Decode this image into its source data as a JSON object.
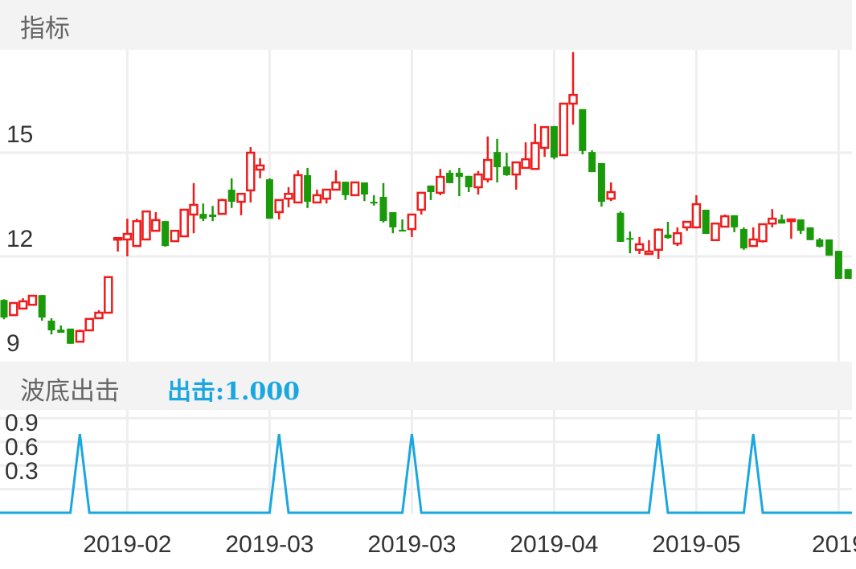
{
  "header": {
    "title": "指标"
  },
  "indicator_header": {
    "title": "波底出击",
    "value_label": "出击:1.000"
  },
  "colors": {
    "up": "#ee1c1c",
    "down": "#1a9a0a",
    "indicator": "#1aa7e0",
    "grid": "#eeeeee",
    "header_bg": "#f3f3f3"
  },
  "chart_data": [
    {
      "type": "candlestick",
      "title": "",
      "ylim": [
        9,
        18
      ],
      "y_ticks": [
        "9",
        "12",
        "15"
      ],
      "grid": true,
      "x_ticks": [
        {
          "label": "2019-02",
          "index": 13
        },
        {
          "label": "2019-03",
          "index": 28
        },
        {
          "label": "2019-03",
          "index": 43
        },
        {
          "label": "2019-04",
          "index": 58
        },
        {
          "label": "2019-05",
          "index": 73
        },
        {
          "label": "2019",
          "index": 88
        }
      ],
      "ohlc_fields": [
        "open",
        "high",
        "low",
        "close"
      ],
      "ohlc": [
        [
          10.74,
          10.76,
          10.18,
          10.23
        ],
        [
          10.3,
          10.65,
          10.3,
          10.65
        ],
        [
          10.49,
          10.79,
          10.49,
          10.7
        ],
        [
          10.6,
          10.88,
          10.6,
          10.86
        ],
        [
          10.88,
          10.88,
          10.14,
          10.23
        ],
        [
          10.14,
          10.21,
          9.74,
          9.86
        ],
        [
          9.88,
          10.0,
          9.79,
          9.79
        ],
        [
          9.91,
          9.91,
          9.47,
          9.47
        ],
        [
          9.53,
          9.88,
          9.53,
          9.84
        ],
        [
          9.86,
          10.19,
          9.86,
          10.19
        ],
        [
          10.21,
          10.44,
          10.19,
          10.37
        ],
        [
          10.37,
          11.4,
          10.37,
          11.4
        ],
        [
          12.49,
          12.53,
          12.14,
          12.53
        ],
        [
          12.49,
          13.09,
          12.0,
          12.65
        ],
        [
          12.3,
          13.09,
          12.3,
          13.02
        ],
        [
          12.49,
          13.3,
          12.49,
          13.3
        ],
        [
          12.74,
          13.28,
          12.74,
          13.05
        ],
        [
          13.02,
          13.02,
          12.28,
          12.3
        ],
        [
          12.44,
          12.74,
          12.44,
          12.74
        ],
        [
          12.58,
          13.35,
          12.58,
          13.35
        ],
        [
          13.21,
          14.12,
          12.67,
          13.49
        ],
        [
          13.23,
          13.53,
          13.02,
          13.09
        ],
        [
          13.21,
          13.46,
          13.02,
          13.14
        ],
        [
          13.23,
          13.67,
          13.23,
          13.63
        ],
        [
          13.93,
          14.26,
          13.4,
          13.58
        ],
        [
          13.58,
          13.81,
          13.19,
          13.81
        ],
        [
          13.91,
          15.16,
          13.56,
          15.0
        ],
        [
          14.51,
          14.84,
          14.26,
          14.63
        ],
        [
          14.23,
          14.26,
          13.09,
          13.09
        ],
        [
          13.28,
          13.63,
          13.07,
          13.63
        ],
        [
          13.67,
          14.0,
          13.42,
          13.81
        ],
        [
          13.56,
          14.49,
          13.56,
          14.35
        ],
        [
          14.35,
          14.56,
          13.4,
          13.58
        ],
        [
          13.56,
          13.93,
          13.56,
          13.77
        ],
        [
          13.67,
          13.93,
          13.53,
          13.93
        ],
        [
          13.93,
          14.49,
          13.93,
          14.14
        ],
        [
          14.16,
          14.16,
          13.63,
          13.77
        ],
        [
          13.77,
          14.14,
          13.77,
          14.14
        ],
        [
          14.14,
          14.14,
          13.6,
          13.79
        ],
        [
          13.58,
          13.77,
          13.47,
          13.53
        ],
        [
          13.72,
          14.12,
          12.98,
          13.02
        ],
        [
          13.28,
          13.28,
          12.67,
          12.84
        ],
        [
          12.77,
          13.07,
          12.72,
          12.72
        ],
        [
          12.79,
          13.21,
          12.56,
          13.21
        ],
        [
          13.35,
          13.84,
          13.21,
          13.84
        ],
        [
          14.05,
          14.05,
          13.63,
          13.86
        ],
        [
          13.84,
          14.53,
          13.77,
          14.3
        ],
        [
          14.42,
          14.49,
          14.12,
          14.12
        ],
        [
          14.42,
          14.56,
          13.74,
          14.3
        ],
        [
          14.33,
          14.33,
          13.86,
          14.0
        ],
        [
          14.0,
          14.47,
          13.79,
          14.37
        ],
        [
          14.23,
          15.47,
          14.14,
          14.79
        ],
        [
          15.02,
          15.4,
          14.14,
          14.58
        ],
        [
          14.6,
          15.0,
          14.33,
          14.35
        ],
        [
          14.37,
          14.72,
          13.93,
          14.72
        ],
        [
          14.56,
          15.3,
          14.56,
          14.81
        ],
        [
          14.53,
          15.84,
          14.53,
          15.28
        ],
        [
          15.14,
          15.74,
          14.88,
          15.74
        ],
        [
          15.77,
          15.77,
          14.81,
          14.86
        ],
        [
          14.93,
          16.42,
          14.93,
          16.42
        ],
        [
          16.42,
          17.91,
          15.81,
          16.67
        ],
        [
          16.26,
          16.26,
          14.95,
          15.05
        ],
        [
          15.02,
          15.07,
          14.44,
          14.44
        ],
        [
          14.7,
          14.7,
          13.44,
          13.58
        ],
        [
          13.67,
          14.14,
          13.6,
          13.86
        ],
        [
          13.26,
          13.3,
          12.42,
          12.42
        ],
        [
          12.53,
          12.72,
          12.09,
          12.49
        ],
        [
          12.19,
          12.56,
          12.07,
          12.35
        ],
        [
          12.07,
          12.47,
          12.07,
          12.14
        ],
        [
          12.19,
          12.81,
          11.93,
          12.77
        ],
        [
          12.63,
          13.0,
          12.51,
          12.53
        ],
        [
          12.37,
          12.84,
          12.3,
          12.67
        ],
        [
          12.84,
          13.0,
          12.74,
          13.0
        ],
        [
          12.84,
          13.77,
          12.81,
          13.51
        ],
        [
          13.35,
          13.35,
          12.65,
          12.65
        ],
        [
          12.47,
          12.95,
          12.47,
          12.95
        ],
        [
          12.86,
          13.21,
          12.84,
          13.16
        ],
        [
          13.19,
          13.19,
          12.7,
          12.84
        ],
        [
          12.79,
          12.84,
          12.19,
          12.23
        ],
        [
          12.3,
          12.84,
          12.3,
          12.49
        ],
        [
          12.44,
          12.93,
          12.4,
          12.93
        ],
        [
          12.95,
          13.37,
          12.84,
          13.09
        ],
        [
          13.07,
          13.21,
          12.95,
          12.95
        ],
        [
          13.02,
          13.07,
          12.51,
          13.07
        ],
        [
          13.07,
          13.07,
          12.65,
          12.74
        ],
        [
          12.84,
          12.84,
          12.47,
          12.47
        ],
        [
          12.49,
          12.53,
          12.26,
          12.28
        ],
        [
          12.49,
          12.49,
          12.02,
          12.02
        ],
        [
          12.16,
          12.16,
          11.35,
          11.35
        ],
        [
          11.63,
          11.63,
          11.35,
          11.35
        ]
      ]
    },
    {
      "type": "line",
      "title": "波底出击",
      "ylim": [
        0,
        1.2
      ],
      "y_ticks": [
        "0.3",
        "0.6",
        "0.9"
      ],
      "grid": true,
      "series": [
        {
          "name": "出击",
          "values": [
            0,
            0,
            0,
            0,
            0,
            0,
            0,
            0,
            1,
            0,
            0,
            0,
            0,
            0,
            0,
            0,
            0,
            0,
            0,
            0,
            0,
            0,
            0,
            0,
            0,
            0,
            0,
            0,
            0,
            1,
            0,
            0,
            0,
            0,
            0,
            0,
            0,
            0,
            0,
            0,
            0,
            0,
            0,
            1,
            0,
            0,
            0,
            0,
            0,
            0,
            0,
            0,
            0,
            0,
            0,
            0,
            0,
            0,
            0,
            0,
            0,
            0,
            0,
            0,
            0,
            0,
            0,
            0,
            0,
            1,
            0,
            0,
            0,
            0,
            0,
            0,
            0,
            0,
            0,
            1,
            0,
            0,
            0,
            0,
            0,
            0,
            0,
            0,
            0,
            0
          ]
        }
      ]
    }
  ]
}
